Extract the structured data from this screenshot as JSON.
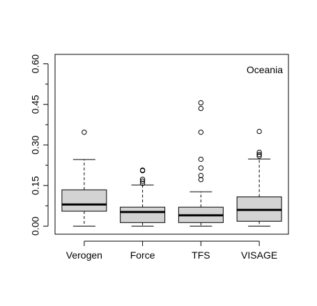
{
  "chart_data": {
    "type": "box",
    "annotation": "Oceania",
    "categories": [
      "Verogen",
      "Force",
      "TFS",
      "VISAGE"
    ],
    "ylim": [
      -0.03,
      0.635
    ],
    "yticks": [
      {
        "value": 0.0,
        "label": "0.00"
      },
      {
        "value": 0.15,
        "label": "0.15"
      },
      {
        "value": 0.3,
        "label": "0.30"
      },
      {
        "value": 0.45,
        "label": "0.45"
      },
      {
        "value": 0.6,
        "label": "0.60"
      }
    ],
    "yminor": [
      0.075,
      0.225,
      0.375,
      0.525
    ],
    "boxes": [
      {
        "name": "Verogen",
        "whisker_low": 0.0,
        "q1": 0.055,
        "median": 0.08,
        "q3": 0.134,
        "whisker_high": 0.246,
        "outliers": [
          0.347
        ]
      },
      {
        "name": "Force",
        "whisker_low": 0.0,
        "q1": 0.013,
        "median": 0.052,
        "q3": 0.07,
        "whisker_high": 0.152,
        "outliers": [
          0.158,
          0.166,
          0.173,
          0.205,
          0.207
        ]
      },
      {
        "name": "TFS",
        "whisker_low": 0.0,
        "q1": 0.013,
        "median": 0.04,
        "q3": 0.07,
        "whisker_high": 0.127,
        "outliers": [
          0.172,
          0.187,
          0.215,
          0.247,
          0.347,
          0.435,
          0.456
        ]
      },
      {
        "name": "VISAGE",
        "whisker_low": 0.0,
        "q1": 0.018,
        "median": 0.06,
        "q3": 0.108,
        "whisker_high": 0.248,
        "outliers": [
          0.259,
          0.265,
          0.273,
          0.35
        ]
      }
    ],
    "colors": {
      "box_fill": "#d3d3d3",
      "stroke": "#000000"
    }
  }
}
